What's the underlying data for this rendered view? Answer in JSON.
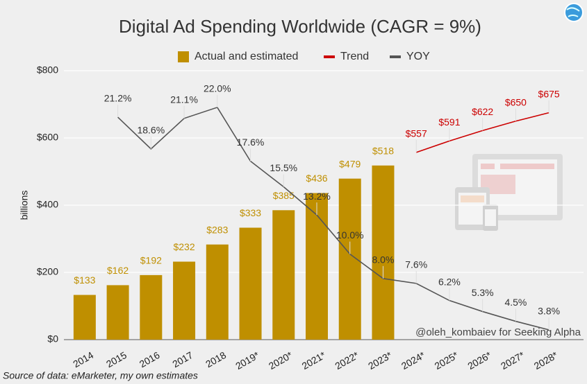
{
  "chart_data": {
    "type": "bar",
    "title": "Digital Ad Spending Worldwide (CAGR = 9%)",
    "y_label": "billions",
    "annotation": "@oleh_kombaiev for Seeking Alpha",
    "source": "Source of data: eMarketer, my own estimates",
    "categories": [
      "2014",
      "2015",
      "2016",
      "2017",
      "2018",
      "2019*",
      "2020*",
      "2021*",
      "2022*",
      "2023*",
      "2024*",
      "2025*",
      "2026*",
      "2027*",
      "2028*"
    ],
    "ylim": [
      0,
      800
    ],
    "yticks": [
      {
        "value": 0,
        "label": "$0"
      },
      {
        "value": 200,
        "label": "$200"
      },
      {
        "value": 400,
        "label": "$400"
      },
      {
        "value": 600,
        "label": "$600"
      },
      {
        "value": 800,
        "label": "$800"
      }
    ],
    "y2lim": [
      3,
      25
    ],
    "grid": true,
    "legend": "top",
    "series": [
      {
        "name": "Actual and estimated",
        "type": "bar",
        "color": "#bf8f00",
        "values": [
          133,
          162,
          192,
          232,
          283,
          333,
          385,
          436,
          479,
          518,
          null,
          null,
          null,
          null,
          null
        ],
        "value_labels": [
          "$133",
          "$162",
          "$192",
          "$232",
          "$283",
          "$333",
          "$385",
          "$436",
          "$479",
          "$518",
          null,
          null,
          null,
          null,
          null
        ]
      },
      {
        "name": "Trend",
        "type": "line",
        "color": "#cc0000",
        "values": [
          null,
          null,
          null,
          null,
          null,
          null,
          null,
          null,
          null,
          null,
          557,
          591,
          622,
          650,
          675
        ],
        "value_labels": [
          null,
          null,
          null,
          null,
          null,
          null,
          null,
          null,
          null,
          null,
          "$557",
          "$591",
          "$622",
          "$650",
          "$675"
        ]
      },
      {
        "name": "YOY",
        "type": "line",
        "axis": "y2",
        "color": "#555555",
        "values": [
          null,
          21.2,
          18.6,
          21.1,
          22.0,
          17.6,
          15.5,
          13.2,
          10.0,
          8.0,
          7.6,
          6.2,
          5.3,
          4.5,
          3.8
        ],
        "value_labels": [
          null,
          "21.2%",
          "18.6%",
          "21.1%",
          "22.0%",
          "17.6%",
          "15.5%",
          "13.2%",
          "10.0%",
          "8.0%",
          "7.6%",
          "6.2%",
          "5.3%",
          "4.5%",
          "3.8%"
        ]
      }
    ]
  }
}
